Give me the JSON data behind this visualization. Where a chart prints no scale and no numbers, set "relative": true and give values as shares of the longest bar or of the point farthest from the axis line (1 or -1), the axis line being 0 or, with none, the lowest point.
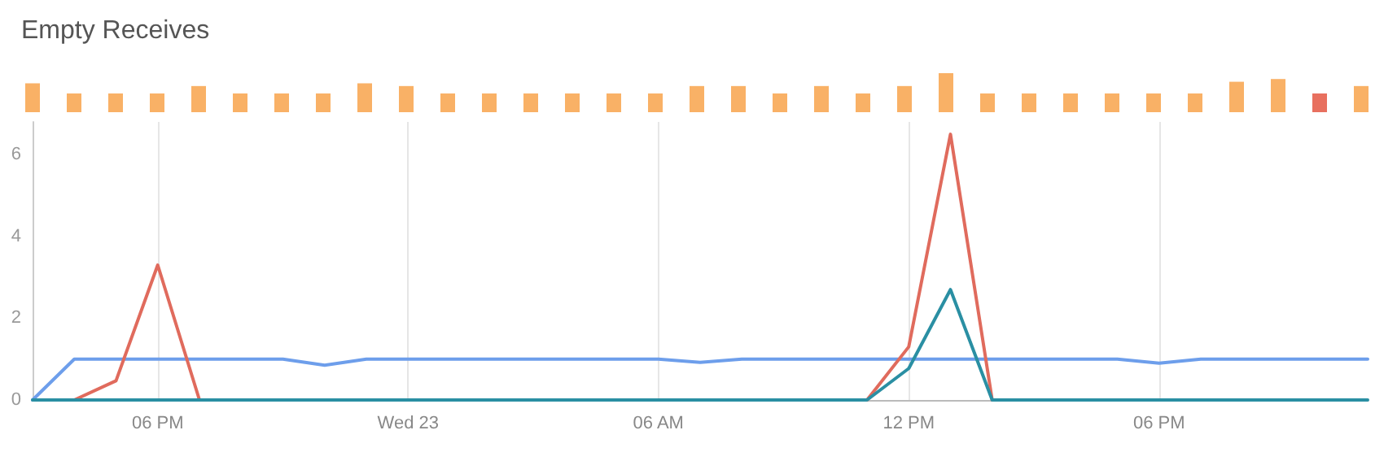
{
  "chart_data": [
    {
      "type": "bar",
      "title": "Empty Receives",
      "relative": true,
      "categories": [
        null,
        null,
        null,
        null,
        null,
        null,
        null,
        null,
        null,
        null,
        null,
        null,
        null,
        null,
        null,
        null,
        null,
        null,
        null,
        null,
        null,
        null,
        null,
        null,
        null,
        null,
        null,
        null,
        null,
        null,
        null,
        null,
        null
      ],
      "values": [
        0.74,
        0.48,
        0.48,
        0.48,
        0.67,
        0.48,
        0.48,
        0.48,
        0.74,
        0.67,
        0.48,
        0.48,
        0.48,
        0.48,
        0.48,
        0.48,
        0.67,
        0.67,
        0.48,
        0.67,
        0.48,
        0.67,
        1,
        0.48,
        0.48,
        0.48,
        0.48,
        0.48,
        0.48,
        0.78,
        0.85,
        0.48,
        0.67
      ],
      "colors": [
        "#f9b166",
        "#f9b166",
        "#f9b166",
        "#f9b166",
        "#f9b166",
        "#f9b166",
        "#f9b166",
        "#f9b166",
        "#f9b166",
        "#f9b166",
        "#f9b166",
        "#f9b166",
        "#f9b166",
        "#f9b166",
        "#f9b166",
        "#f9b166",
        "#f9b166",
        "#f9b166",
        "#f9b166",
        "#f9b166",
        "#f9b166",
        "#f9b166",
        "#f9b166",
        "#f9b166",
        "#f9b166",
        "#f9b166",
        "#f9b166",
        "#f9b166",
        "#f9b166",
        "#f9b166",
        "#f9b166",
        "#e8705f",
        "#f9b166"
      ]
    },
    {
      "type": "line",
      "categories": [
        null,
        null,
        null,
        "06 PM",
        null,
        null,
        null,
        null,
        null,
        "Wed 23",
        null,
        null,
        null,
        null,
        null,
        "06 AM",
        null,
        null,
        null,
        null,
        null,
        "12 PM",
        null,
        null,
        null,
        null,
        null,
        "06 PM",
        null,
        null,
        null,
        null,
        null
      ],
      "ylim": [
        0,
        6.8
      ],
      "yticks": [
        0,
        2,
        4,
        6
      ],
      "series": [
        {
          "color": "#6d9eeb",
          "values": [
            0,
            1,
            1,
            1,
            1,
            1,
            1,
            0.85,
            1,
            1,
            1,
            1,
            1,
            1,
            1,
            1,
            0.92,
            1,
            1,
            1,
            1,
            1,
            1,
            1,
            1,
            1,
            1,
            0.9,
            1,
            1,
            1,
            1,
            1
          ]
        },
        {
          "color": "#e06b5d",
          "values": [
            null,
            0,
            0.47,
            3.3,
            0,
            null,
            null,
            null,
            null,
            null,
            null,
            null,
            null,
            null,
            null,
            null,
            null,
            null,
            null,
            null,
            0,
            1.3,
            6.5,
            0,
            null,
            null,
            null,
            null,
            null,
            null,
            null,
            null,
            null
          ]
        },
        {
          "color": "#2a8fa3",
          "values": [
            0,
            0,
            0,
            0,
            0,
            0,
            0,
            0,
            0,
            0,
            0,
            0,
            0,
            0,
            0,
            0,
            0,
            0,
            0,
            0,
            0,
            0.77,
            2.7,
            0,
            0,
            0,
            0,
            0,
            0,
            0,
            0,
            0,
            0
          ]
        }
      ],
      "grid": "x",
      "marker": "none",
      "line_style": "solid"
    }
  ]
}
